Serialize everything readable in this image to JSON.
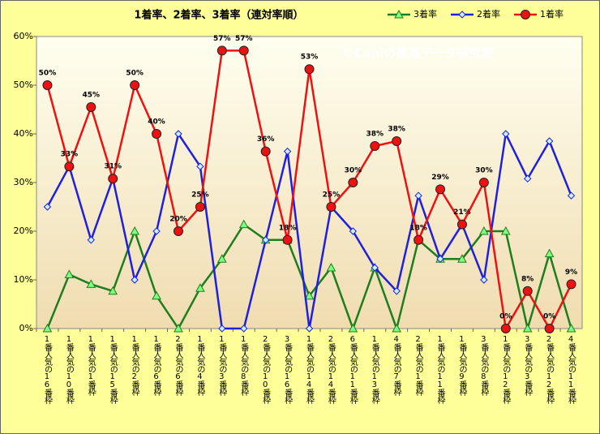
{
  "chart_data": {
    "type": "line",
    "title": "1着率、2着率、3着率（連対率順）",
    "annotation": "©Caniの競馬データ研究室",
    "categories": [
      "1番人気の16番枠",
      "1番人気の10番枠",
      "1番人気の1番枠",
      "1番人気の15番枠",
      "1番人気の2番枠",
      "1番人気の6番枠",
      "2番人気の6番枠",
      "1番人気の4番枠",
      "1番人気の3番枠",
      "1番人気の8番枠",
      "2番人気の10番枠",
      "3番人気の16番枠",
      "1番人気の14番枠",
      "2番人気の14番枠",
      "6番人気の11番枠",
      "1番人気の13番枠",
      "4番人気の7番枠",
      "2番人気の1番枠",
      "1番人気の11番枠",
      "1番人気の9番枠",
      "3番人気の8番枠",
      "1番人気の12番枠",
      "3番人気の3番枠",
      "2番人気の12番枠",
      "4番人気の11番枠"
    ],
    "series": [
      {
        "name": "3着率",
        "color": "#1e7d1e",
        "marker": "triangle",
        "values": [
          0,
          11.1,
          9.1,
          7.7,
          20,
          6.7,
          0,
          8.3,
          14.3,
          21.4,
          18.2,
          18.2,
          6.7,
          12.5,
          0,
          12.5,
          0,
          18.2,
          14.3,
          14.3,
          20,
          20,
          0,
          15.4,
          0
        ]
      },
      {
        "name": "2着率",
        "color": "#1f1fe0",
        "marker": "diamond",
        "values": [
          25,
          33.3,
          18.2,
          30.8,
          10,
          20,
          40,
          33.3,
          0,
          0,
          18.2,
          36.4,
          0,
          25,
          20,
          12.5,
          7.7,
          27.3,
          14.3,
          21.4,
          10,
          40,
          30.8,
          38.5,
          27.3
        ]
      },
      {
        "name": "1着率",
        "color": "#ee1111",
        "marker": "circle",
        "values": [
          50,
          33.3,
          45.5,
          30.8,
          50,
          40,
          20,
          25,
          57.1,
          57.1,
          36.4,
          18.2,
          53.3,
          25,
          30,
          37.5,
          38.5,
          18.2,
          28.6,
          21.4,
          30,
          0,
          7.7,
          0,
          9.1
        ],
        "value_labels": [
          "50%",
          "33%",
          "45%",
          "31%",
          "50%",
          "40%",
          "20%",
          "25%",
          "57%",
          "57%",
          "36%",
          "18%",
          "53%",
          "25%",
          "30%",
          "38%",
          "38%",
          "18%",
          "29%",
          "21%",
          "30%",
          "0%",
          "8%",
          "0%",
          "9%"
        ]
      }
    ],
    "ylim": [
      0,
      60
    ],
    "yticks": [
      {
        "value": 0,
        "label": "0%"
      },
      {
        "value": 10,
        "label": "10%"
      },
      {
        "value": 20,
        "label": "20%"
      },
      {
        "value": 30,
        "label": "30%"
      },
      {
        "value": 40,
        "label": "40%"
      },
      {
        "value": 50,
        "label": "50%"
      },
      {
        "value": 60,
        "label": "60%"
      }
    ],
    "legend": "top-right"
  }
}
